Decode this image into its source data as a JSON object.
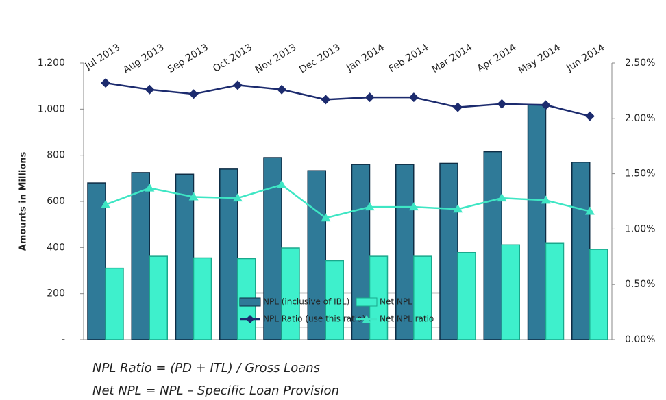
{
  "chart_data": {
    "type": "bar",
    "categories": [
      "Jul 2013",
      "Aug 2013",
      "Sep 2013",
      "Oct 2013",
      "Nov 2013",
      "Dec 2013",
      "Jan 2014",
      "Feb 2014",
      "Mar 2014",
      "Apr 2014",
      "May 2014",
      "Jun 2014"
    ],
    "y_label": "Amounts in Millions",
    "series": [
      {
        "name": "NPL (inclusive of IBL)",
        "type": "bar",
        "color": "#2f7a98",
        "values": [
          680,
          725,
          718,
          740,
          790,
          733,
          760,
          760,
          765,
          815,
          1020,
          770
        ]
      },
      {
        "name": "Net NPL",
        "type": "bar",
        "color": "#3ef0cc",
        "values": [
          310,
          362,
          355,
          352,
          398,
          343,
          362,
          362,
          378,
          412,
          418,
          392
        ]
      },
      {
        "name": "NPL Ratio (use this ratio)",
        "type": "line",
        "axis": "y2",
        "marker": "diamond",
        "color": "#1c2b6e",
        "values": [
          2.32,
          2.26,
          2.22,
          2.3,
          2.26,
          2.17,
          2.19,
          2.19,
          2.1,
          2.13,
          2.12,
          2.02
        ]
      },
      {
        "name": "Net NPL ratio",
        "type": "line",
        "axis": "y2",
        "marker": "triangle",
        "color": "#3ee6c4",
        "values": [
          1.22,
          1.37,
          1.29,
          1.28,
          1.4,
          1.1,
          1.2,
          1.2,
          1.18,
          1.28,
          1.26,
          1.16
        ]
      }
    ],
    "ylim": [
      0,
      1200
    ],
    "yticks": [
      {
        "value": 0,
        "label": "-"
      },
      200,
      400,
      600,
      800,
      {
        "value": 1000,
        "label": "1,000"
      },
      {
        "value": 1200,
        "label": "1,200"
      }
    ],
    "y2lim": [
      0,
      2.5
    ],
    "y2ticks": [
      {
        "value": 0,
        "label": "0.00%"
      },
      {
        "value": 0.5,
        "label": "0.50%"
      },
      {
        "value": 1,
        "label": "1.00%"
      },
      {
        "value": 1.5,
        "label": "1.50%"
      },
      {
        "value": 2,
        "label": "2.00%"
      },
      {
        "value": 2.5,
        "label": "2.50%"
      }
    ],
    "legend": "bottom-center",
    "notes": [
      "NPL Ratio = (PD + ITL) / Gross Loans",
      "Net NPL = NPL – Specific Loan Provision"
    ]
  }
}
